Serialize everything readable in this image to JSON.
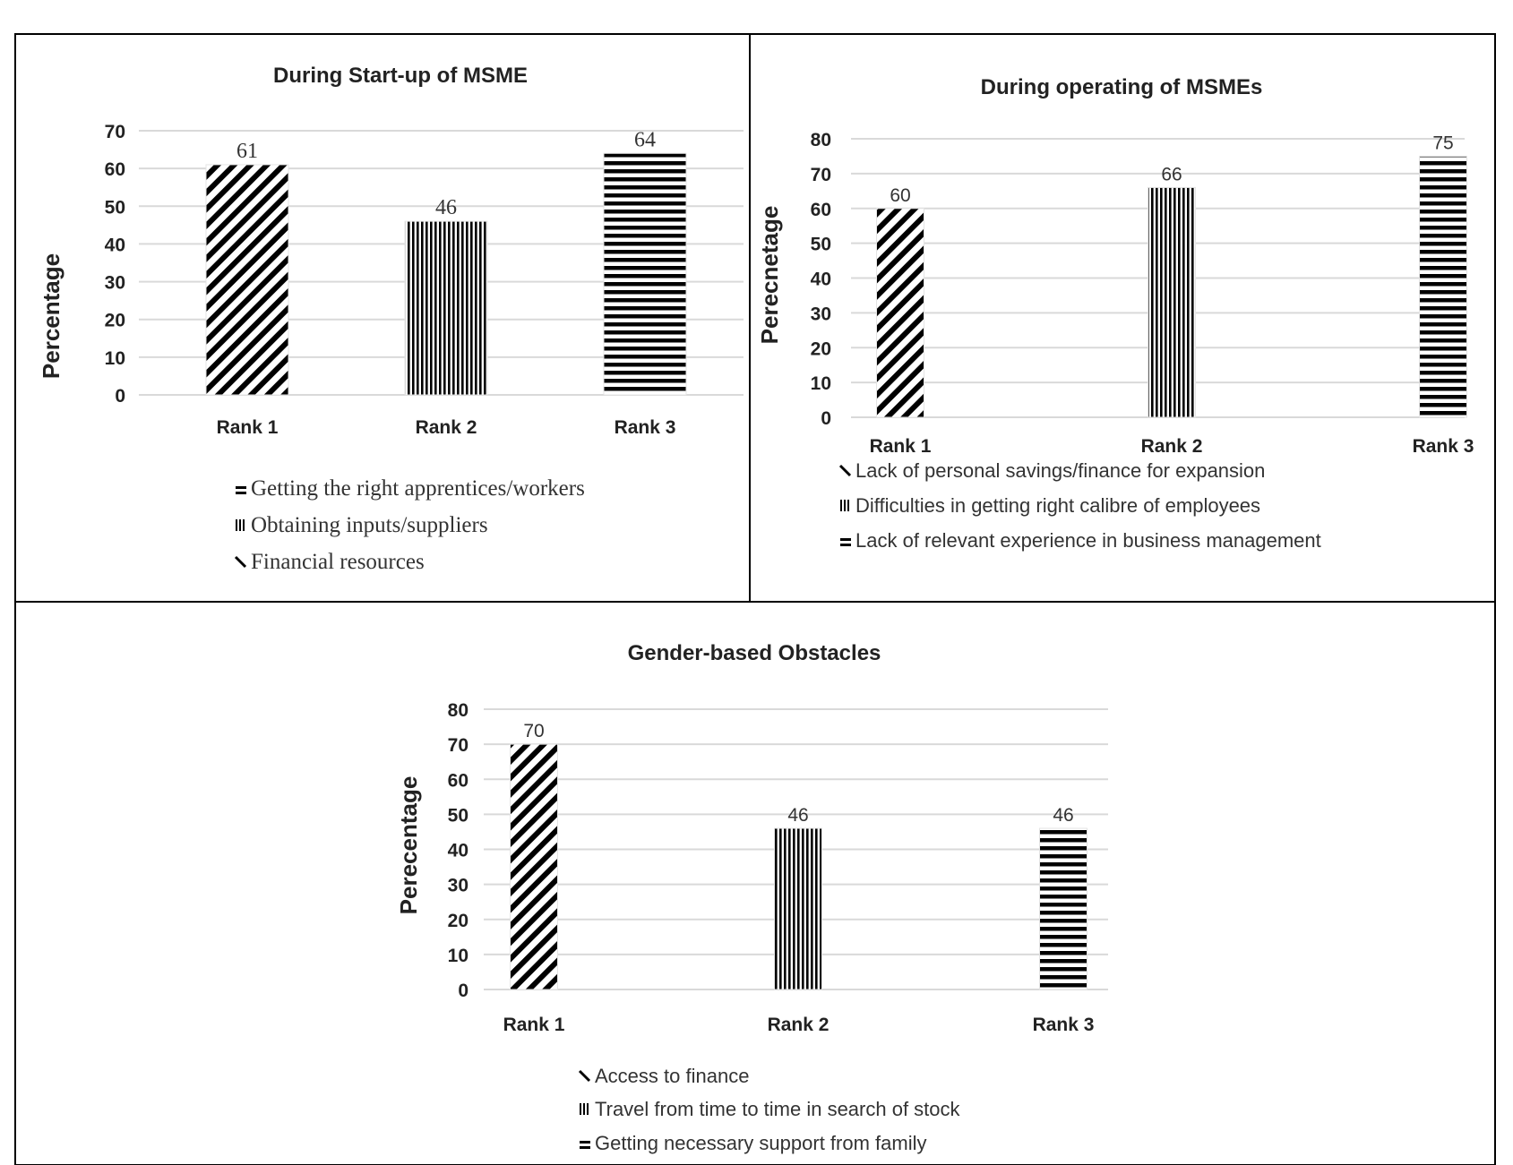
{
  "chart_data": [
    {
      "type": "bar",
      "title": "During Start-up of MSME",
      "ylabel": "Percentage",
      "xlabel": "",
      "categories": [
        "Rank 1",
        "Rank 2",
        "Rank 3"
      ],
      "values": [
        61,
        46,
        64
      ],
      "data_labels": [
        "61",
        "46",
        "64"
      ],
      "ylim": [
        0,
        70
      ],
      "yticks": [
        "0",
        "10",
        "20",
        "30",
        "40",
        "50",
        "60",
        "70"
      ],
      "patterns": [
        "diagonal",
        "vertical",
        "horizontal"
      ],
      "legend": [
        "Getting the right apprentices/workers",
        "Obtaining inputs/suppliers",
        "Financial resources"
      ],
      "legend_markers": [
        "horizontal",
        "vertical",
        "diagonal"
      ],
      "legend_position": "bottom",
      "grid": true
    },
    {
      "type": "bar",
      "title": "During operating of MSMEs",
      "ylabel": "Perecnetage",
      "xlabel": "",
      "categories": [
        "Rank 1",
        "Rank 2",
        "Rank 3"
      ],
      "values": [
        60,
        66,
        75
      ],
      "data_labels": [
        "60",
        "66",
        "75"
      ],
      "ylim": [
        0,
        80
      ],
      "yticks": [
        "0",
        "10",
        "20",
        "30",
        "40",
        "50",
        "60",
        "70",
        "80"
      ],
      "patterns": [
        "diagonal",
        "vertical",
        "horizontal"
      ],
      "legend": [
        "Lack of personal savings/finance for expansion",
        "Difficulties in getting right calibre of employees",
        "Lack of relevant experience in business management"
      ],
      "legend_markers": [
        "diagonal",
        "vertical",
        "horizontal"
      ],
      "legend_position": "bottom",
      "grid": true
    },
    {
      "type": "bar",
      "title": "Gender-based Obstacles",
      "ylabel": "Perecentage",
      "xlabel": "",
      "categories": [
        "Rank 1",
        "Rank 2",
        "Rank 3"
      ],
      "values": [
        70,
        46,
        46
      ],
      "data_labels": [
        "70",
        "46",
        "46"
      ],
      "ylim": [
        0,
        80
      ],
      "yticks": [
        "0",
        "10",
        "20",
        "30",
        "40",
        "50",
        "60",
        "70",
        "80"
      ],
      "patterns": [
        "diagonal",
        "vertical",
        "horizontal"
      ],
      "legend": [
        "Access to finance",
        "Travel from time to time in search of stock",
        "Getting necessary support from family"
      ],
      "legend_markers": [
        "diagonal",
        "vertical",
        "horizontal"
      ],
      "legend_position": "bottom",
      "grid": true
    }
  ]
}
